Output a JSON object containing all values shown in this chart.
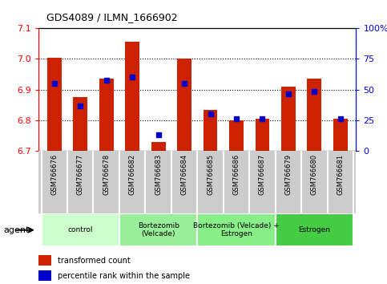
{
  "title": "GDS4089 / ILMN_1666902",
  "samples": [
    "GSM766676",
    "GSM766677",
    "GSM766678",
    "GSM766682",
    "GSM766683",
    "GSM766684",
    "GSM766685",
    "GSM766686",
    "GSM766687",
    "GSM766679",
    "GSM766680",
    "GSM766681"
  ],
  "red_values": [
    7.003,
    6.875,
    6.935,
    7.057,
    6.728,
    7.002,
    6.834,
    6.8,
    6.804,
    6.91,
    6.935,
    6.803
  ],
  "blue_values": [
    6.92,
    6.845,
    6.929,
    6.94,
    6.752,
    6.92,
    6.821,
    6.803,
    6.803,
    6.886,
    6.894,
    6.803
  ],
  "ymin": 6.7,
  "ymax": 7.1,
  "y_ticks": [
    6.7,
    6.8,
    6.9,
    7.0,
    7.1
  ],
  "right_yticks": [
    0,
    25,
    50,
    75,
    100
  ],
  "right_yticklabels": [
    "0",
    "25",
    "50",
    "75",
    "100%"
  ],
  "groups": [
    {
      "label": "control",
      "start": 0,
      "end": 3,
      "color": "#ccffcc"
    },
    {
      "label": "Bortezomib\n(Velcade)",
      "start": 3,
      "end": 6,
      "color": "#99ee99"
    },
    {
      "label": "Bortezomib (Velcade) +\nEstrogen",
      "start": 6,
      "end": 9,
      "color": "#88ee88"
    },
    {
      "label": "Estrogen",
      "start": 9,
      "end": 12,
      "color": "#44cc44"
    }
  ],
  "bar_color": "#cc2200",
  "dot_color": "#0000cc",
  "bar_width": 0.55,
  "dot_size": 20,
  "legend_red": "transformed count",
  "legend_blue": "percentile rank within the sample"
}
